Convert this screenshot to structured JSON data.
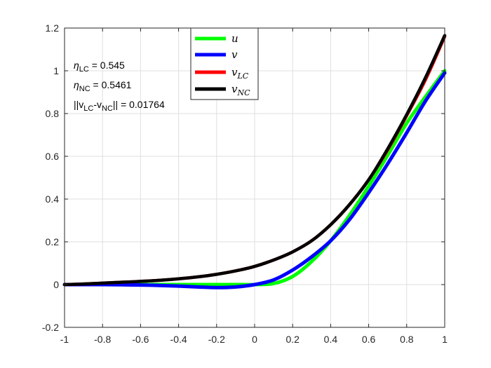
{
  "chart_data": {
    "type": "line",
    "xlim": [
      -1,
      1
    ],
    "ylim": [
      -0.2,
      1.2
    ],
    "x_ticks": [
      -1,
      -0.8,
      -0.6,
      -0.4,
      -0.2,
      0,
      0.2,
      0.4,
      0.6,
      0.8,
      1
    ],
    "x_tick_labels": [
      "-1",
      "-0.8",
      "-0.6",
      "-0.4",
      "-0.2",
      "0",
      "0.2",
      "0.4",
      "0.6",
      "0.8",
      "1"
    ],
    "y_ticks": [
      -0.2,
      0,
      0.2,
      0.4,
      0.6,
      0.8,
      1,
      1.2
    ],
    "y_tick_labels": [
      "-0.2",
      "0",
      "0.2",
      "0.4",
      "0.6",
      "0.8",
      "1",
      "1.2"
    ],
    "grid": true,
    "legend_position": "top-center",
    "x": [
      -1,
      -0.9,
      -0.8,
      -0.7,
      -0.6,
      -0.5,
      -0.4,
      -0.3,
      -0.2,
      -0.1,
      0,
      0.1,
      0.2,
      0.3,
      0.4,
      0.5,
      0.6,
      0.7,
      0.8,
      0.9,
      1
    ],
    "series": [
      {
        "name": "u",
        "color": "#00ff00",
        "values": [
          0,
          0,
          0,
          0,
          0,
          0,
          0,
          0,
          0,
          0,
          0,
          0.005,
          0.038,
          0.108,
          0.205,
          0.325,
          0.46,
          0.605,
          0.755,
          0.88,
          1.0
        ]
      },
      {
        "name": "v",
        "color": "#0000ff",
        "values": [
          0,
          0,
          0,
          -0.001,
          -0.002,
          -0.004,
          -0.007,
          -0.011,
          -0.014,
          -0.011,
          0,
          0.022,
          0.068,
          0.13,
          0.205,
          0.305,
          0.43,
          0.565,
          0.71,
          0.86,
          0.99
        ]
      },
      {
        "name": "v_LC",
        "color": "#ff0000",
        "values": [
          0,
          0.003,
          0.007,
          0.011,
          0.015,
          0.02,
          0.027,
          0.036,
          0.048,
          0.064,
          0.085,
          0.115,
          0.153,
          0.205,
          0.28,
          0.375,
          0.49,
          0.63,
          0.79,
          0.96,
          1.16
        ]
      },
      {
        "name": "v_NC",
        "color": "#000000",
        "values": [
          0,
          0.003,
          0.007,
          0.011,
          0.015,
          0.02,
          0.027,
          0.036,
          0.048,
          0.064,
          0.085,
          0.115,
          0.153,
          0.205,
          0.28,
          0.375,
          0.49,
          0.635,
          0.795,
          0.97,
          1.165
        ]
      }
    ],
    "legend": [
      {
        "base": "u",
        "sub": ""
      },
      {
        "base": "v",
        "sub": ""
      },
      {
        "base": "v",
        "sub": "LC"
      },
      {
        "base": "v",
        "sub": "NC"
      }
    ],
    "annotations": [
      {
        "symbol": "η",
        "sub": "LC",
        "text": " = 0.545"
      },
      {
        "symbol": "η",
        "sub": "NC",
        "text": " = 0.5461"
      },
      {
        "pre": "||v",
        "sub1": "LC",
        "mid": "-v",
        "sub2": "NC",
        "post": "|| = 0.01764"
      }
    ]
  }
}
